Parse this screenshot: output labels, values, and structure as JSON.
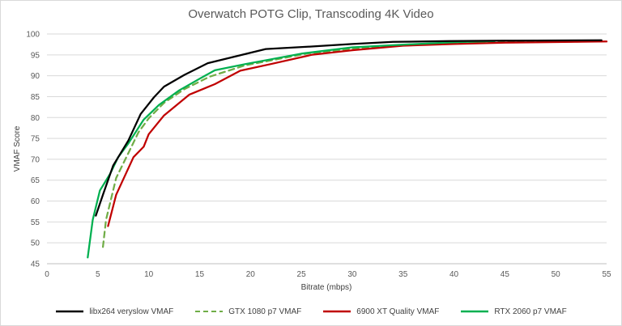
{
  "chart_data": {
    "type": "line",
    "title": "Overwatch POTG Clip, Transcoding 4K Video",
    "xlabel": "Bitrate (mbps)",
    "ylabel": "VMAF Score",
    "xlim": [
      0,
      55
    ],
    "ylim": [
      45,
      100
    ],
    "xticks": [
      0,
      5,
      10,
      15,
      20,
      25,
      30,
      35,
      40,
      45,
      50,
      55
    ],
    "yticks": [
      45,
      50,
      55,
      60,
      65,
      70,
      75,
      80,
      85,
      90,
      95,
      100
    ],
    "grid": "horizontal",
    "legend_position": "bottom",
    "series": [
      {
        "name": "libx264 veryslow VMAF",
        "color": "#000000",
        "dash": "solid",
        "points": [
          [
            4.8,
            56.5
          ],
          [
            5.5,
            61.5
          ],
          [
            6.5,
            68.5
          ],
          [
            8.0,
            74.5
          ],
          [
            9.2,
            80.8
          ],
          [
            10.5,
            84.8
          ],
          [
            11.5,
            87.4
          ],
          [
            13.5,
            90.2
          ],
          [
            15.8,
            93.0
          ],
          [
            18.0,
            94.3
          ],
          [
            21.5,
            96.4
          ],
          [
            26.0,
            97.0
          ],
          [
            30.0,
            97.6
          ],
          [
            34.0,
            98.1
          ],
          [
            39.5,
            98.3
          ],
          [
            45.0,
            98.4
          ],
          [
            54.5,
            98.5
          ]
        ]
      },
      {
        "name": "GTX 1080 p7 VMAF",
        "color": "#70ad47",
        "dash": "dashed",
        "points": [
          [
            5.5,
            49.0
          ],
          [
            5.8,
            55.5
          ],
          [
            6.8,
            65.5
          ],
          [
            8.0,
            71.5
          ],
          [
            9.0,
            76.5
          ],
          [
            10.0,
            79.8
          ],
          [
            11.5,
            83.5
          ],
          [
            13.5,
            86.8
          ],
          [
            16.0,
            89.8
          ],
          [
            19.5,
            92.5
          ],
          [
            25.5,
            95.3
          ],
          [
            30.0,
            96.5
          ],
          [
            35.0,
            97.3
          ],
          [
            40.0,
            97.8
          ],
          [
            45.5,
            98.1
          ],
          [
            54.5,
            98.2
          ]
        ]
      },
      {
        "name": "6900 XT Quality VMAF",
        "color": "#c00000",
        "dash": "solid",
        "points": [
          [
            6.0,
            54.0
          ],
          [
            6.8,
            61.5
          ],
          [
            8.5,
            70.5
          ],
          [
            9.5,
            73.0
          ],
          [
            10.0,
            76.0
          ],
          [
            11.5,
            80.5
          ],
          [
            14.0,
            85.5
          ],
          [
            16.5,
            88.0
          ],
          [
            19.0,
            91.2
          ],
          [
            22.0,
            92.8
          ],
          [
            26.0,
            95.0
          ],
          [
            30.0,
            96.1
          ],
          [
            35.0,
            97.2
          ],
          [
            40.0,
            97.6
          ],
          [
            45.0,
            97.9
          ],
          [
            55.0,
            98.2
          ]
        ]
      },
      {
        "name": "RTX 2060 p7 VMAF",
        "color": "#00b050",
        "dash": "solid",
        "points": [
          [
            4.0,
            46.5
          ],
          [
            4.5,
            55.5
          ],
          [
            5.2,
            62.5
          ],
          [
            6.2,
            66.5
          ],
          [
            7.0,
            70.5
          ],
          [
            8.0,
            73.8
          ],
          [
            9.5,
            79.5
          ],
          [
            11.0,
            83.0
          ],
          [
            13.0,
            86.5
          ],
          [
            15.0,
            89.3
          ],
          [
            16.5,
            91.3
          ],
          [
            19.5,
            92.8
          ],
          [
            25.0,
            95.3
          ],
          [
            30.0,
            96.8
          ],
          [
            35.5,
            97.5
          ],
          [
            40.0,
            98.0
          ],
          [
            44.0,
            98.3
          ]
        ]
      }
    ]
  }
}
